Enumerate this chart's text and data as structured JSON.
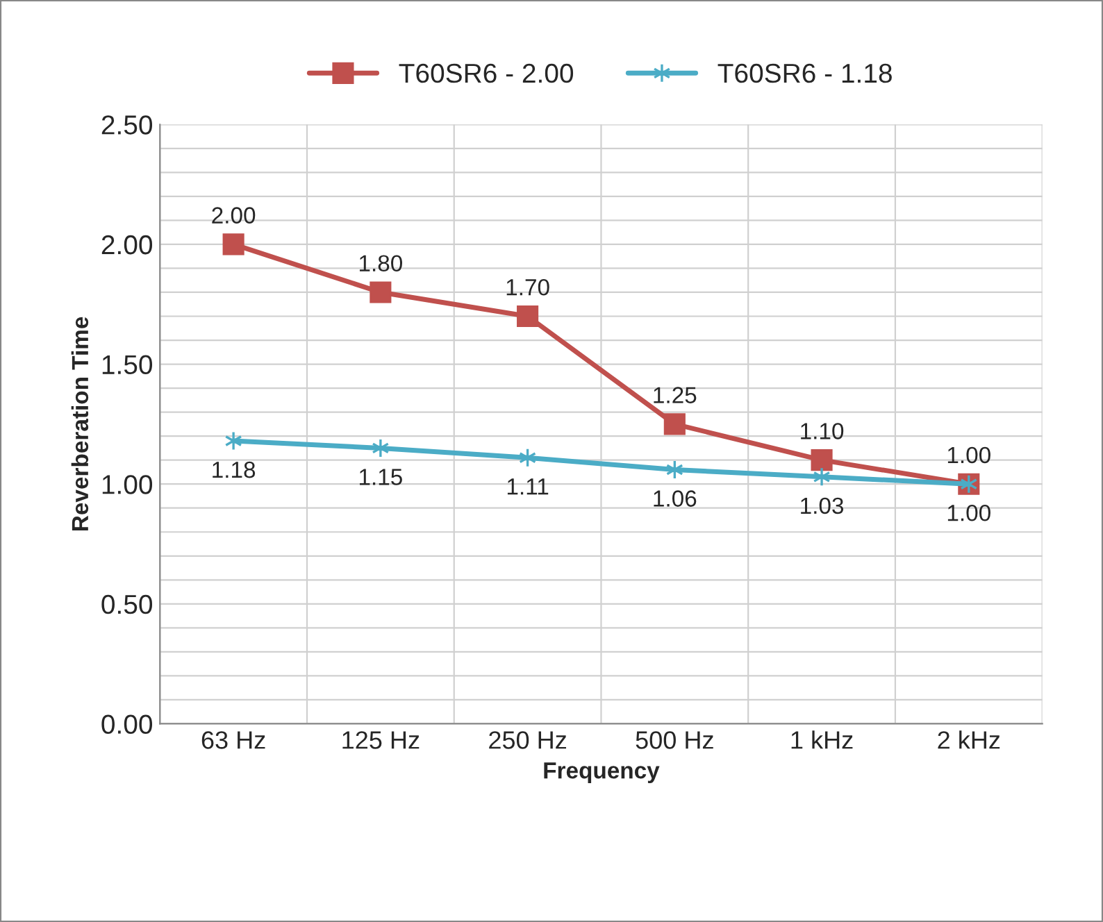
{
  "chart_data": {
    "type": "line",
    "xlabel": "Frequency",
    "ylabel": "Reverberation Time",
    "categories": [
      "63 Hz",
      "125 Hz",
      "250 Hz",
      "500 Hz",
      "1 kHz",
      "2 kHz"
    ],
    "series": [
      {
        "name": "T60SR6 - 2.00",
        "color": "#c0504d",
        "marker": "square",
        "values": [
          2.0,
          1.8,
          1.7,
          1.25,
          1.1,
          1.0
        ],
        "value_labels": [
          "2.00",
          "1.80",
          "1.70",
          "1.25",
          "1.10",
          "1.00"
        ]
      },
      {
        "name": "T60SR6 - 1.18",
        "color": "#4bacc6",
        "marker": "cross",
        "values": [
          1.18,
          1.15,
          1.11,
          1.06,
          1.03,
          1.0
        ],
        "value_labels": [
          "1.18",
          "1.15",
          "1.11",
          "1.06",
          "1.03",
          "1.00"
        ]
      }
    ],
    "ylim": [
      0,
      2.5
    ],
    "yticks": [
      {
        "value": 0,
        "label": "0.00"
      },
      {
        "value": 0.5,
        "label": "0.50"
      },
      {
        "value": 1,
        "label": "1.00"
      },
      {
        "value": 1.5,
        "label": "1.50"
      },
      {
        "value": 2,
        "label": "2.00"
      },
      {
        "value": 2.5,
        "label": "2.50"
      }
    ],
    "grid": true,
    "legend": "top",
    "line_style": "solid"
  }
}
